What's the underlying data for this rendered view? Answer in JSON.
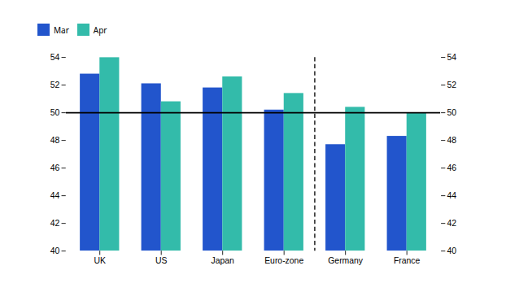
{
  "chart_data": {
    "type": "bar",
    "categories": [
      "UK",
      "US",
      "Japan",
      "Euro-zone",
      "Germany",
      "France"
    ],
    "series": [
      {
        "name": "Mar",
        "color": "#2255CC",
        "values": [
          52.8,
          52.1,
          51.8,
          50.2,
          47.7,
          48.3
        ]
      },
      {
        "name": "Apr",
        "color": "#33BBAA",
        "values": [
          54.0,
          50.8,
          52.6,
          51.4,
          50.4,
          50.0
        ]
      }
    ],
    "ylim": [
      40,
      54
    ],
    "yticks": [
      40,
      42,
      44,
      46,
      48,
      50,
      52,
      54
    ],
    "reference_line": 50,
    "divider_between": [
      "Euro-zone",
      "Germany"
    ],
    "grid": false
  }
}
